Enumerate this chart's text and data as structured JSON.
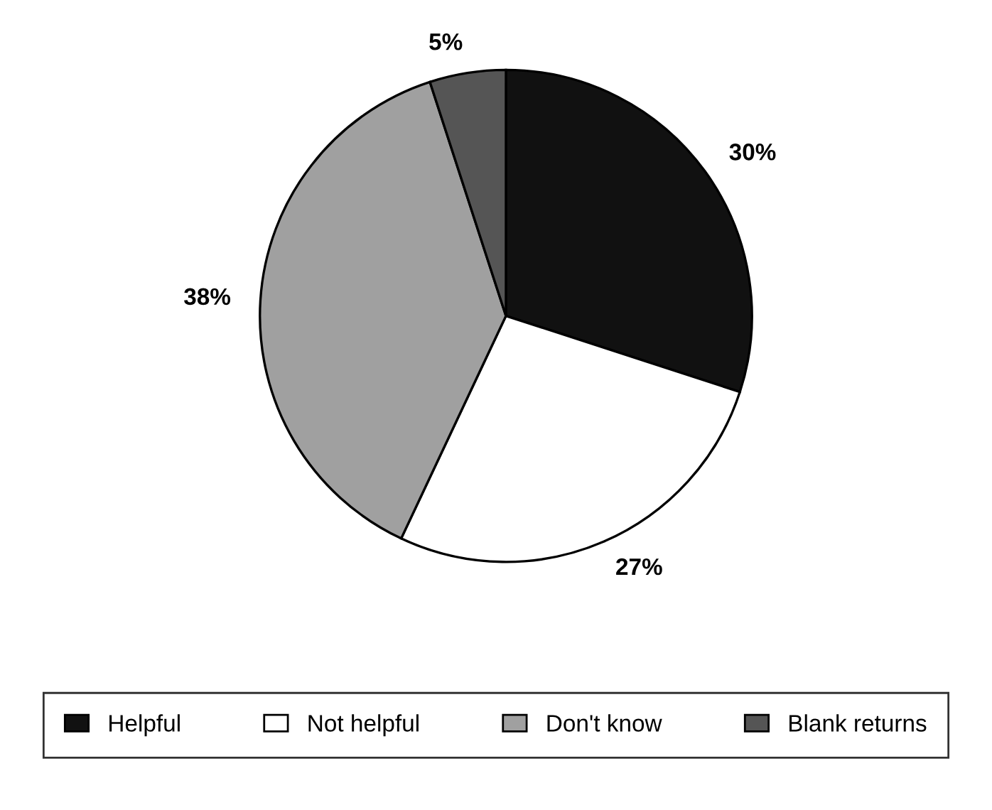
{
  "chart_data": {
    "type": "pie",
    "categories": [
      "Helpful",
      "Not helpful",
      "Don't know",
      "Blank returns"
    ],
    "values": [
      30,
      27,
      38,
      5
    ],
    "value_labels": [
      "30%",
      "27%",
      "38%",
      "5%"
    ],
    "colors": [
      "#111111",
      "#ffffff",
      "#a0a0a0",
      "#555555"
    ],
    "legend": "bottom"
  }
}
